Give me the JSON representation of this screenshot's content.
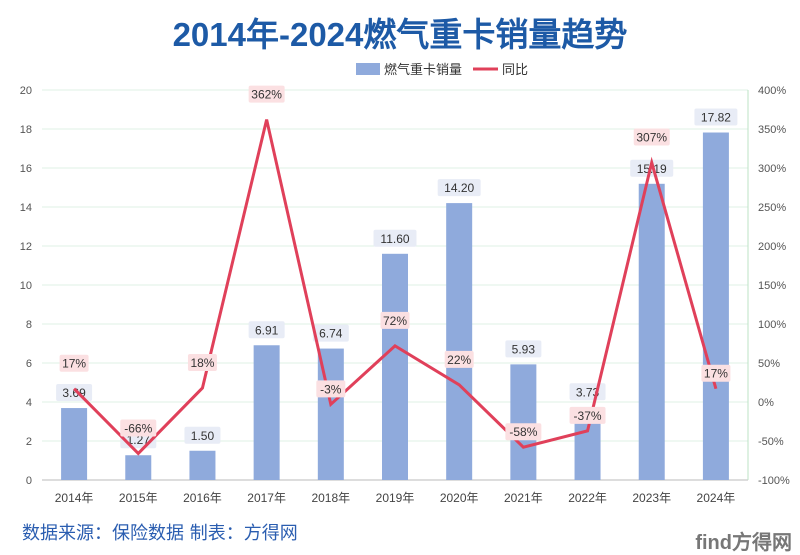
{
  "chart_data": {
    "type": "bar+line",
    "title": "2014年-2024燃气重卡销量趋势",
    "categories": [
      "2014年",
      "2015年",
      "2016年",
      "2017年",
      "2018年",
      "2019年",
      "2020年",
      "2021年",
      "2022年",
      "2023年",
      "2024年"
    ],
    "series": [
      {
        "name": "燃气重卡销量",
        "type": "bar",
        "axis": "left",
        "color": "#8faadc",
        "values": [
          3.69,
          1.27,
          1.5,
          6.91,
          6.74,
          11.6,
          14.2,
          5.93,
          3.73,
          15.19,
          17.82
        ],
        "labels": [
          "3.69",
          "1.27",
          "1.50",
          "6.91",
          "6.74",
          "11.60",
          "14.20",
          "5.93",
          "3.73",
          "15.19",
          "17.82"
        ]
      },
      {
        "name": "同比",
        "type": "line",
        "axis": "right",
        "color": "#e0405a",
        "values": [
          17,
          -66,
          18,
          362,
          -3,
          72,
          22,
          -58,
          -37,
          307,
          17
        ],
        "labels": [
          "17%",
          "-66%",
          "18%",
          "362%",
          "-3%",
          "72%",
          "22%",
          "-58%",
          "-37%",
          "307%",
          "17%"
        ]
      }
    ],
    "left_axis": {
      "range": [
        0,
        20
      ],
      "ticks": [
        "0",
        "2",
        "4",
        "6",
        "8",
        "10",
        "12",
        "14",
        "16",
        "18",
        "20"
      ]
    },
    "right_axis": {
      "range": [
        -100,
        400
      ],
      "ticks": [
        "-100%",
        "-50%",
        "0%",
        "50%",
        "100%",
        "150%",
        "200%",
        "250%",
        "300%",
        "350%",
        "400%"
      ]
    },
    "legend": "top-right",
    "grid": true
  },
  "footer": {
    "source": "数据来源：保险数据  制表：方得网",
    "logo": "find方得网"
  }
}
